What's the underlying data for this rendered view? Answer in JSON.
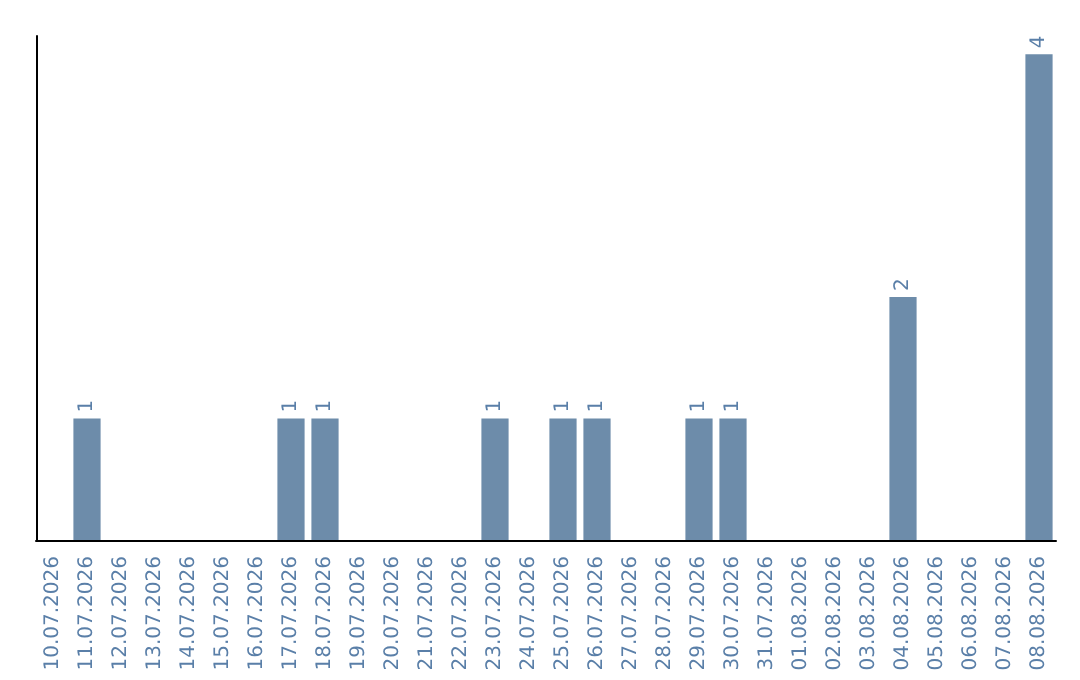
{
  "chart_data": {
    "type": "bar",
    "categories": [
      "10.07.2026",
      "11.07.2026",
      "12.07.2026",
      "13.07.2026",
      "14.07.2026",
      "15.07.2026",
      "16.07.2026",
      "17.07.2026",
      "18.07.2026",
      "19.07.2026",
      "20.07.2026",
      "21.07.2026",
      "22.07.2026",
      "23.07.2026",
      "24.07.2026",
      "25.07.2026",
      "26.07.2026",
      "27.07.2026",
      "28.07.2026",
      "29.07.2026",
      "30.07.2026",
      "31.07.2026",
      "01.08.2026",
      "02.08.2026",
      "03.08.2026",
      "04.08.2026",
      "05.08.2026",
      "06.08.2026",
      "07.08.2026",
      "08.08.2026"
    ],
    "values": [
      0,
      1,
      0,
      0,
      0,
      0,
      0,
      1,
      1,
      0,
      0,
      0,
      0,
      1,
      0,
      1,
      1,
      0,
      0,
      1,
      1,
      0,
      0,
      0,
      0,
      2,
      0,
      0,
      0,
      4
    ],
    "value_labels": [
      null,
      "1",
      null,
      null,
      null,
      null,
      null,
      "1",
      "1",
      null,
      null,
      null,
      null,
      "1",
      null,
      "1",
      "1",
      null,
      null,
      "1",
      "1",
      null,
      null,
      null,
      null,
      "2",
      null,
      null,
      null,
      "4"
    ],
    "color": "#6d8caa",
    "ylim": [
      0,
      4.15
    ],
    "tick_labels": "x"
  }
}
